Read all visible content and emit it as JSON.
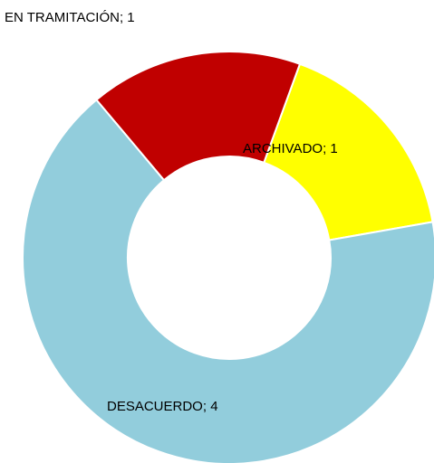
{
  "chart_data": {
    "type": "donut",
    "categories": [
      "ARCHIVADO",
      "DESACUERDO",
      "EN TRAMITACIÓN"
    ],
    "values": [
      1,
      4,
      1
    ],
    "separator": "; ",
    "colors": [
      "#ffff00",
      "#92cddc",
      "#c00000"
    ]
  }
}
